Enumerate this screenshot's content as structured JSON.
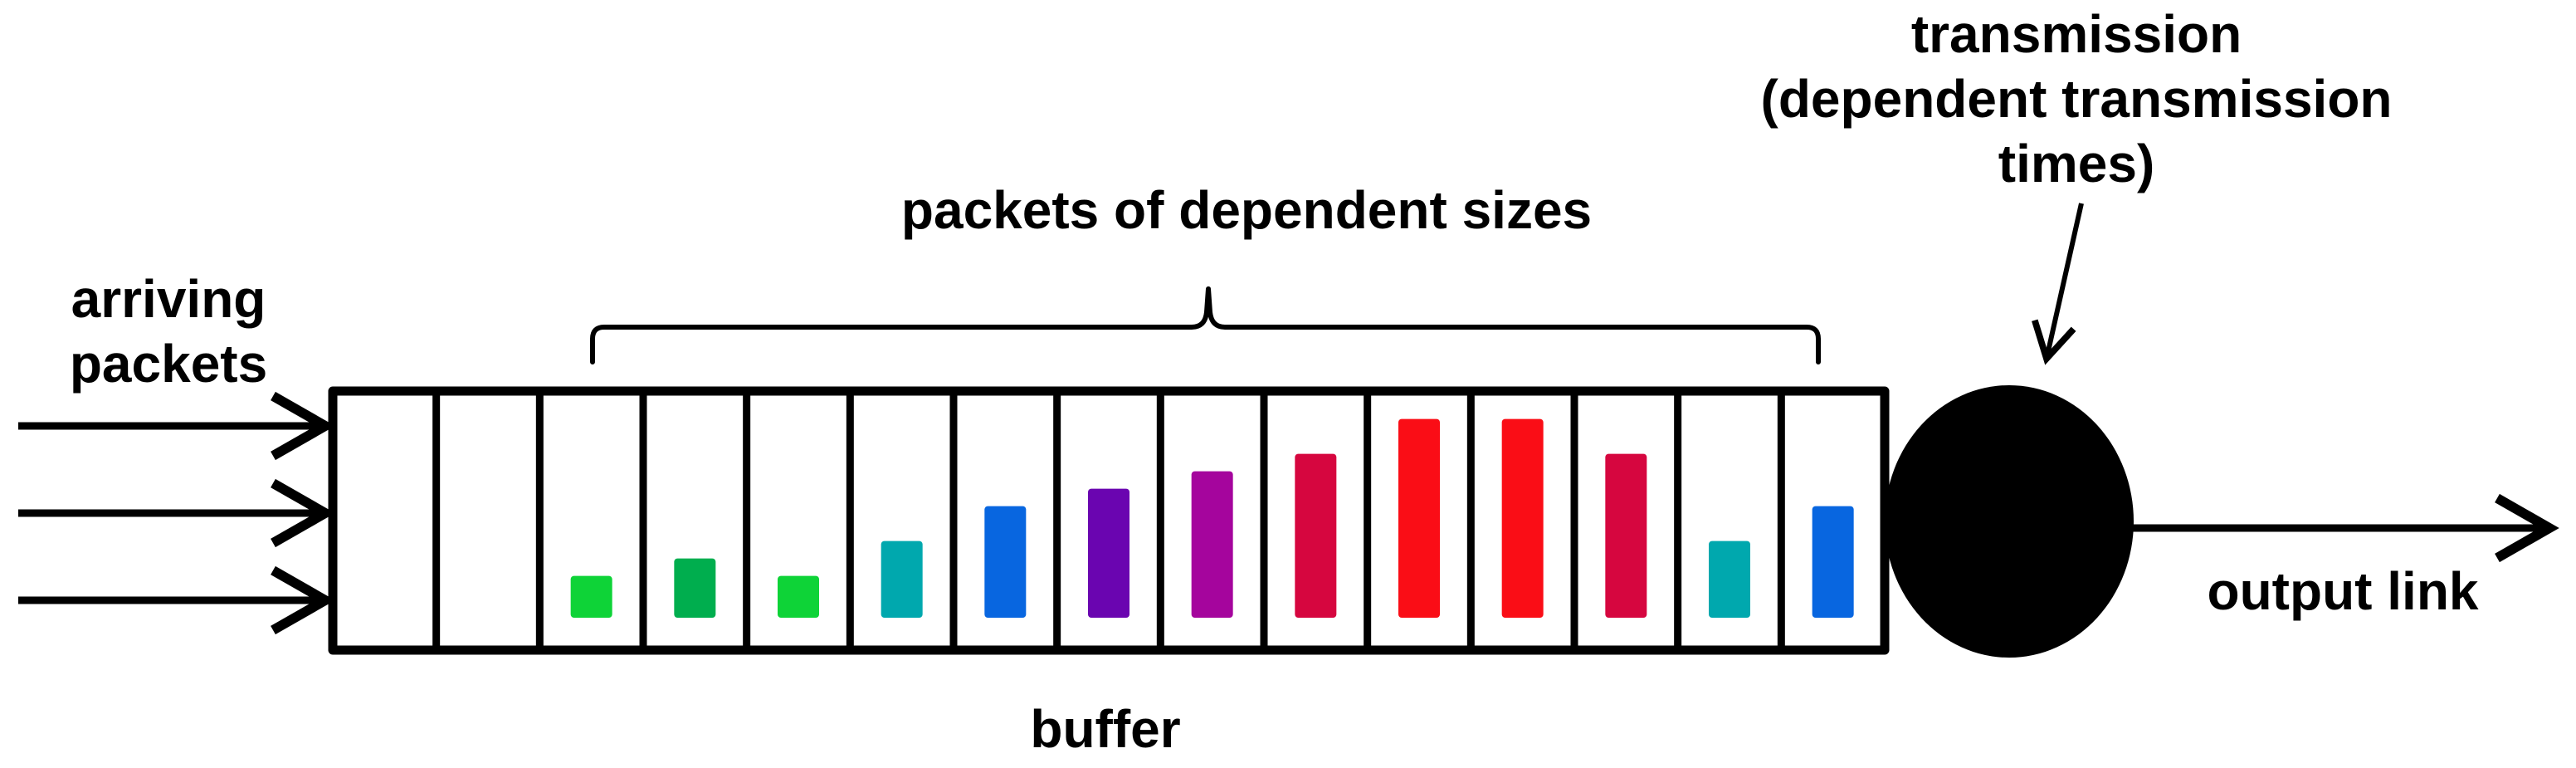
{
  "labels": {
    "arriving_line1": "arriving",
    "arriving_line2": "packets",
    "packets_label": "packets of dependent sizes",
    "buffer": "buffer",
    "transmission_line1": "transmission",
    "transmission_line2": "(dependent transmission",
    "transmission_line3": "times)",
    "output": "output link"
  },
  "buffer": {
    "slot_count": 15,
    "packets": [
      {
        "slot": 2,
        "relative_size": 0.24,
        "color": "#0ed337"
      },
      {
        "slot": 3,
        "relative_size": 0.34,
        "color": "#00ae4e"
      },
      {
        "slot": 4,
        "relative_size": 0.24,
        "color": "#0ed337"
      },
      {
        "slot": 5,
        "relative_size": 0.44,
        "color": "#00a8ae"
      },
      {
        "slot": 6,
        "relative_size": 0.64,
        "color": "#0866e0"
      },
      {
        "slot": 7,
        "relative_size": 0.74,
        "color": "#6a05b0"
      },
      {
        "slot": 8,
        "relative_size": 0.84,
        "color": "#a5059d"
      },
      {
        "slot": 9,
        "relative_size": 0.94,
        "color": "#d6063f"
      },
      {
        "slot": 10,
        "relative_size": 1.14,
        "color": "#fa0d16"
      },
      {
        "slot": 11,
        "relative_size": 1.14,
        "color": "#fa0d16"
      },
      {
        "slot": 12,
        "relative_size": 0.94,
        "color": "#d6063f"
      },
      {
        "slot": 13,
        "relative_size": 0.44,
        "color": "#00a8ae"
      },
      {
        "slot": 14,
        "relative_size": 0.64,
        "color": "#0866e0"
      }
    ]
  },
  "colors": {
    "outline": "#000000",
    "server": "#000000",
    "background": "#ffffff"
  }
}
